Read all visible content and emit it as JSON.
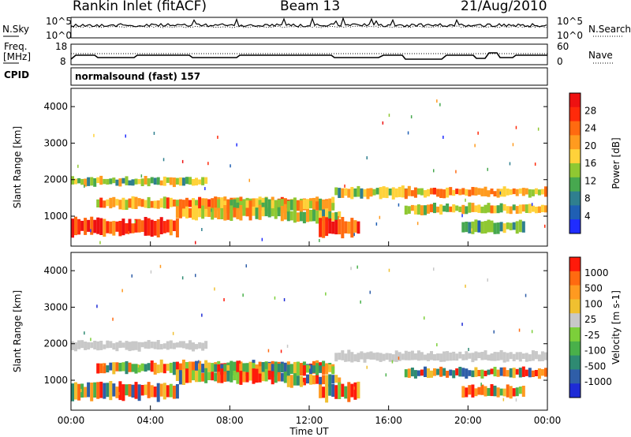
{
  "header": {
    "station": "Rankin Inlet (fitACF)",
    "beam": "Beam 13",
    "date": "21/Aug/2010"
  },
  "panels": {
    "nsky_label": "N.Sky",
    "nsearch_label": "N.Search",
    "nsky_ticks": [
      "10^5",
      "10^0"
    ],
    "nsearch_ticks": [
      "10^5",
      "10^0"
    ],
    "freq_label_1": "Freq.",
    "freq_label_2": "[MHz]",
    "freq_ticks": [
      "18",
      "8"
    ],
    "nave_label": "Nave",
    "nave_ticks": [
      "60",
      "0"
    ],
    "cpid_label": "CPID",
    "cpid_text": "normalsound (fast) 157"
  },
  "chart_data": [
    {
      "type": "heatmap",
      "title": "",
      "xlabel": "Time UT",
      "ylabel": "Slant Range [km]",
      "x_ticks": [
        "00:00",
        "04:00",
        "08:00",
        "12:00",
        "16:00",
        "20:00",
        "00:00"
      ],
      "y_ticks": [
        "1000",
        "2000",
        "3000",
        "4000"
      ],
      "ylim": [
        180,
        4500
      ],
      "colorbar": {
        "label": "Power [dB]",
        "ticks": [
          "4",
          "8",
          "12",
          "16",
          "20",
          "24",
          "28"
        ],
        "colors": [
          "#1f2cff",
          "#1f5fb4",
          "#2f7f8f",
          "#47a84f",
          "#8fc832",
          "#ffd23a",
          "#ff9b1f",
          "#ff6a10",
          "#ff2a0a",
          "#ee1111"
        ]
      }
    },
    {
      "type": "heatmap",
      "title": "",
      "xlabel": "Time UT",
      "ylabel": "Slant Range [km]",
      "x_ticks": [
        "00:00",
        "04:00",
        "08:00",
        "12:00",
        "16:00",
        "20:00",
        "00:00"
      ],
      "y_ticks": [
        "1000",
        "2000",
        "3000",
        "4000"
      ],
      "ylim": [
        180,
        4500
      ],
      "colorbar": {
        "label": "Velocity [m s-1]",
        "ticks": [
          "1000",
          "500",
          "100",
          "25",
          "-25",
          "-100",
          "-500",
          "-1000"
        ],
        "colors": [
          "#1e2bd6",
          "#2f5ea8",
          "#2e8a72",
          "#49b04a",
          "#7ccf3a",
          "#c8c8c8",
          "#f0c030",
          "#ff9a20",
          "#ff6a10",
          "#ff1a0a"
        ]
      }
    }
  ],
  "colors": {
    "ground_scatter": "#c8c8c8"
  }
}
